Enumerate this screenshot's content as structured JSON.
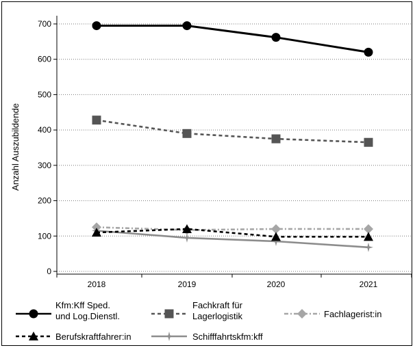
{
  "chart_data": {
    "type": "line",
    "title": "",
    "xlabel": "",
    "ylabel": "Anzahl Auszubildende",
    "categories": [
      "2018",
      "2019",
      "2020",
      "2021"
    ],
    "ylim": [
      0,
      700
    ],
    "yticks": [
      "0",
      "100",
      "200",
      "300",
      "400",
      "500",
      "600",
      "700"
    ],
    "grid": "horizontal dotted",
    "legend_position": "bottom",
    "series": [
      {
        "name": "Kfm:Kff Sped. und Log.Dienstl.",
        "values": [
          695,
          695,
          662,
          620
        ],
        "color": "#000000",
        "line_style": "solid",
        "marker": "circle"
      },
      {
        "name": "Fachkraft für Lagerlogistik",
        "values": [
          428,
          390,
          375,
          365
        ],
        "color": "#555555",
        "line_style": "dashed",
        "marker": "square"
      },
      {
        "name": "Fachlagerist:in",
        "values": [
          125,
          117,
          120,
          120
        ],
        "color": "#a6a6a6",
        "line_style": "dashdot",
        "marker": "diamond"
      },
      {
        "name": "Berufskraftfahrer:in",
        "values": [
          110,
          120,
          98,
          98
        ],
        "color": "#000000",
        "line_style": "dashed",
        "marker": "triangle"
      },
      {
        "name": "Schifffahrtskfm:kff",
        "values": [
          115,
          95,
          85,
          68
        ],
        "color": "#8c8c8c",
        "line_style": "solid",
        "marker": "star"
      }
    ]
  },
  "legend": {
    "items": [
      {
        "line1": "Kfm:Kff Sped.",
        "line2": "und Log.Dienstl."
      },
      {
        "line1": "Fachkraft für",
        "line2": "Lagerlogistik"
      },
      {
        "line1": "Fachlagerist:in",
        "line2": ""
      },
      {
        "line1": "Berufskraftfahrer:in",
        "line2": ""
      },
      {
        "line1": "Schifffahrtskfm:kff",
        "line2": ""
      }
    ]
  }
}
